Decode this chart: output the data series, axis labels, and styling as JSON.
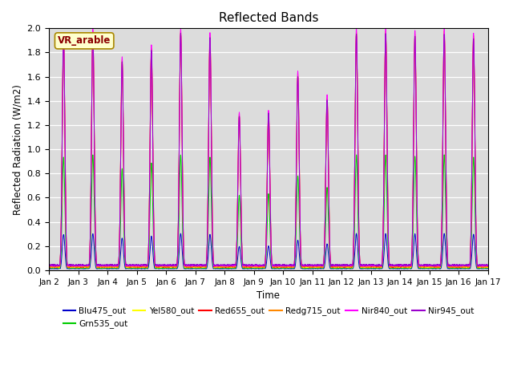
{
  "title": "Reflected Bands",
  "xlabel": "Time",
  "ylabel": "Reflected Radiation (W/m2)",
  "annotation": "VR_arable",
  "ylim": [
    0,
    2.0
  ],
  "xstart": 1,
  "xend": 16,
  "num_days": 15,
  "points_per_day": 144,
  "bg_color": "#dcdcdc",
  "series": [
    {
      "name": "Blu475_out",
      "color": "#0000cc",
      "peak_scale": 0.3,
      "base": 0.03
    },
    {
      "name": "Grn535_out",
      "color": "#00cc00",
      "peak_scale": 0.95,
      "base": 0.04
    },
    {
      "name": "Yel580_out",
      "color": "#ffff00",
      "peak_scale": 1.95,
      "base": 0.05
    },
    {
      "name": "Red655_out",
      "color": "#ff0000",
      "peak_scale": 1.95,
      "base": 0.06
    },
    {
      "name": "Redg715_out",
      "color": "#ff8800",
      "peak_scale": 1.97,
      "base": 0.07
    },
    {
      "name": "Nir840_out",
      "color": "#ff00ff",
      "peak_scale": 2.0,
      "base": 0.08
    },
    {
      "name": "Nir945_out",
      "color": "#9900cc",
      "peak_scale": 1.95,
      "base": 0.09
    }
  ],
  "day_modifiers": [
    0.98,
    1.0,
    0.88,
    0.93,
    1.0,
    0.98,
    0.65,
    0.66,
    0.82,
    0.72,
    1.0,
    1.0,
    0.99,
    1.0,
    0.98
  ],
  "xtick_labels": [
    "Jan 2",
    "Jan 3",
    "Jan 4",
    "Jan 5",
    "Jan 6",
    "Jan 7",
    "Jan 8",
    "Jan 9",
    "Jan 10",
    "Jan 11",
    "Jan 12",
    "Jan 13",
    "Jan 14",
    "Jan 15",
    "Jan 16",
    "Jan 17"
  ],
  "xtick_positions": [
    1,
    2,
    3,
    4,
    5,
    6,
    7,
    8,
    9,
    10,
    11,
    12,
    13,
    14,
    15,
    16
  ]
}
